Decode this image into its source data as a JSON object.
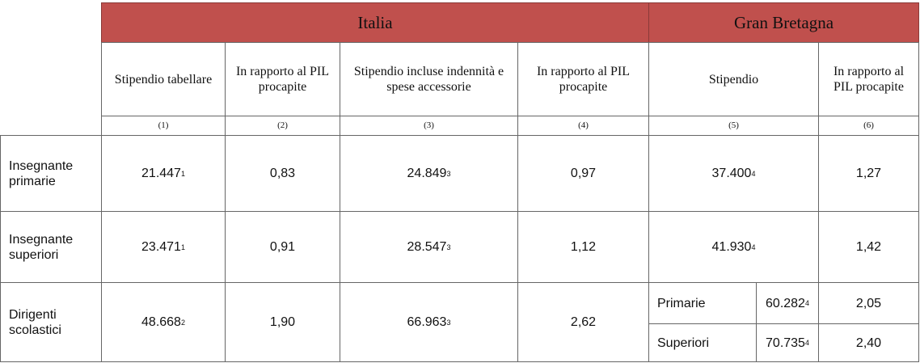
{
  "header": {
    "groups": [
      "Italia",
      "Gran Bretagna"
    ],
    "columns": [
      "Stipendio tabellare",
      "In rapporto al PIL procapite",
      "Stipendio incluse indennità e spese accessorie",
      "In rapporto al PIL procapite",
      "Stipendio",
      "In rapporto al PIL procapite"
    ],
    "numbers": [
      "(1)",
      "(2)",
      "(3)",
      "(4)",
      "(5)",
      "(6)"
    ]
  },
  "rows": [
    {
      "label": "Insegnante primarie",
      "cells": [
        {
          "value": "21.447",
          "note": "1"
        },
        "0,83",
        {
          "value": "24.849",
          "note": "3"
        },
        "0,97",
        {
          "value": "37.400",
          "note": "4"
        },
        "1,27"
      ]
    },
    {
      "label": "Insegnante superiori",
      "cells": [
        {
          "value": "23.471",
          "note": "1"
        },
        "0,91",
        {
          "value": "28.547",
          "note": "3"
        },
        "1,12",
        {
          "value": "41.930",
          "note": "4"
        },
        "1,42"
      ]
    },
    {
      "label": "Dirigenti scolastici",
      "cells": [
        {
          "value": "48.668",
          "note": "2"
        },
        "1,90",
        {
          "value": "66.963",
          "note": "3"
        },
        "2,62"
      ],
      "sub": [
        {
          "label": "Primarie",
          "value": "60.282",
          "note": "4",
          "ratio": "2,05"
        },
        {
          "label": "Superiori",
          "value": "70.735",
          "note": "4",
          "ratio": "2,40"
        }
      ]
    }
  ]
}
